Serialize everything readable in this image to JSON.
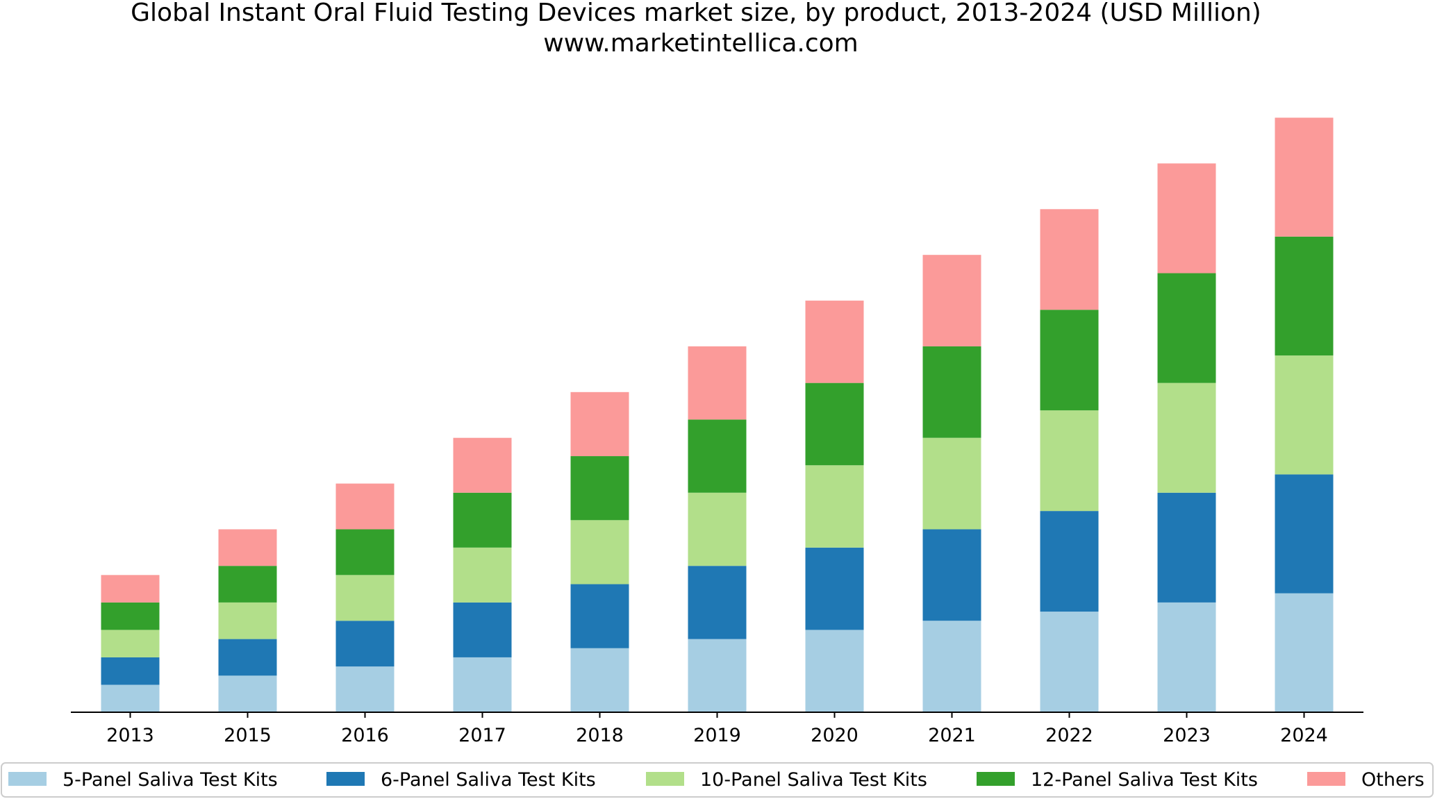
{
  "chart_data": {
    "type": "bar",
    "stacked": true,
    "title": "Global Instant Oral Fluid Testing Devices market size, by product, 2013-2024 (USD Million)",
    "subtitle": "www.marketintellica.com",
    "xlabel": "",
    "ylabel": "",
    "y_axis_visible": false,
    "grid": false,
    "legend_position": "bottom",
    "categories": [
      "2013",
      "2015",
      "2016",
      "2017",
      "2018",
      "2019",
      "2020",
      "2021",
      "2022",
      "2023",
      "2024"
    ],
    "series": [
      {
        "name": "5-Panel Saliva Test Kits",
        "color": "#a6cee3",
        "values": [
          3.0,
          4.0,
          5.0,
          6.0,
          7.0,
          8.0,
          9.0,
          10.0,
          11.0,
          12.0,
          13.0
        ]
      },
      {
        "name": "6-Panel Saliva Test Kits",
        "color": "#1f78b4",
        "values": [
          3.0,
          4.0,
          5.0,
          6.0,
          7.0,
          8.0,
          9.0,
          10.0,
          11.0,
          12.0,
          13.0
        ]
      },
      {
        "name": "10-Panel Saliva Test Kits",
        "color": "#b2df8a",
        "values": [
          3.0,
          4.0,
          5.0,
          6.0,
          7.0,
          8.0,
          9.0,
          10.0,
          11.0,
          12.0,
          13.0
        ]
      },
      {
        "name": "12-Panel Saliva Test Kits",
        "color": "#33a02c",
        "values": [
          3.0,
          4.0,
          5.0,
          6.0,
          7.0,
          8.0,
          9.0,
          10.0,
          11.0,
          12.0,
          13.0
        ]
      },
      {
        "name": "Others",
        "color": "#fb9a99",
        "values": [
          3.0,
          4.0,
          5.0,
          6.0,
          7.0,
          8.0,
          9.0,
          10.0,
          11.0,
          12.0,
          13.0
        ]
      }
    ],
    "ylim": [
      0,
      68
    ]
  }
}
